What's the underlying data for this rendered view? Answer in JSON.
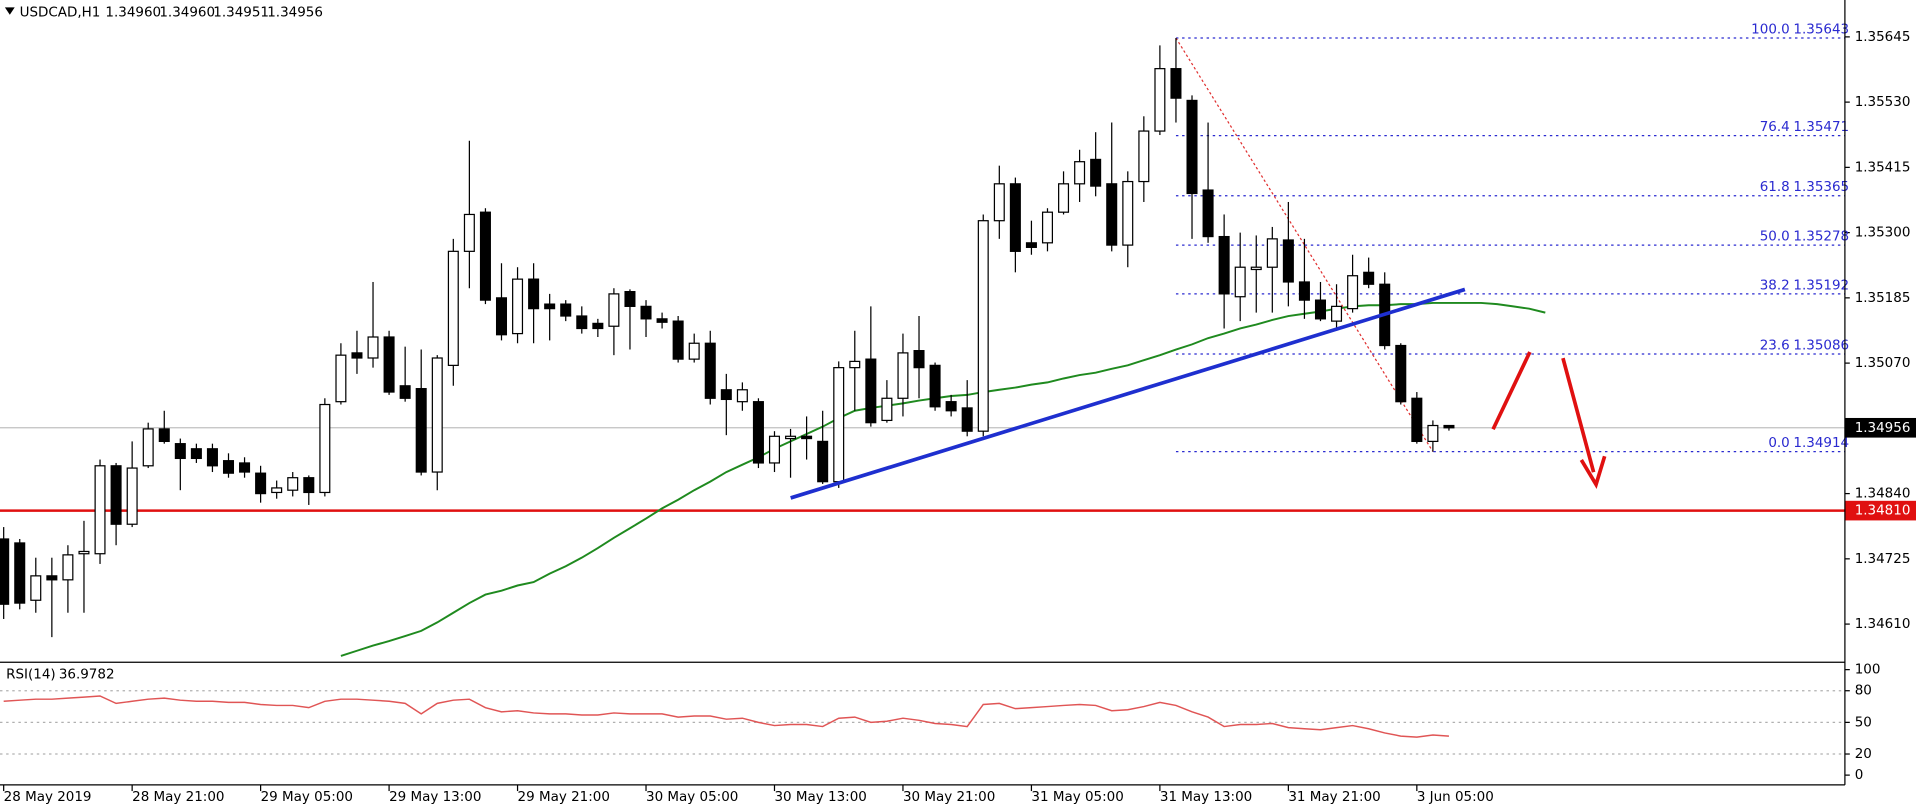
{
  "chart_data": {
    "type": "candlestick",
    "title": "USDCAD,H1",
    "header_values": [
      "1.34960",
      "1.34960",
      "1.34951",
      "1.34956"
    ],
    "categories": [
      "28 May 2019",
      null,
      null,
      null,
      null,
      null,
      null,
      null,
      "28 May 21:00",
      null,
      null,
      null,
      null,
      null,
      null,
      null,
      "29 May 05:00",
      null,
      null,
      null,
      null,
      null,
      null,
      null,
      "29 May 13:00",
      null,
      null,
      null,
      null,
      null,
      null,
      null,
      "29 May 21:00",
      null,
      null,
      null,
      null,
      null,
      null,
      null,
      "30 May 05:00",
      null,
      null,
      null,
      null,
      null,
      null,
      null,
      "30 May 13:00",
      null,
      null,
      null,
      null,
      null,
      null,
      null,
      "30 May 21:00",
      null,
      null,
      null,
      null,
      null,
      null,
      null,
      "31 May 05:00",
      null,
      null,
      null,
      null,
      null,
      null,
      null,
      "31 May 13:00",
      null,
      null,
      null,
      null,
      null,
      null,
      null,
      "31 May 21:00",
      null,
      null,
      null,
      null,
      null,
      null,
      null,
      "3 Jun 05:00",
      null,
      null,
      null,
      null,
      null,
      null,
      null,
      null
    ],
    "open": [
      1.3476,
      1.34753,
      1.34652,
      1.34695,
      1.34688,
      1.34734,
      1.34734,
      1.34889,
      1.34786,
      1.34889,
      1.34954,
      1.34928,
      1.34919,
      1.34919,
      1.34898,
      1.34894,
      1.34876,
      1.34842,
      1.34846,
      1.34868,
      1.34842,
      1.35002,
      1.35088,
      1.35079,
      1.35116,
      1.3503,
      1.35025,
      1.34878,
      1.35066,
      1.35267,
      1.35336,
      1.35185,
      1.35122,
      1.35218,
      1.35174,
      1.35174,
      1.35153,
      1.3514,
      1.35135,
      1.35196,
      1.3517,
      1.35148,
      1.35144,
      1.35077,
      1.35105,
      1.35023,
      1.35002,
      1.35002,
      1.34894,
      1.34937,
      1.34941,
      1.34932,
      1.34861,
      1.35062,
      1.35077,
      1.34969,
      1.35008,
      1.35092,
      1.35066,
      1.35002,
      1.34991,
      1.3495,
      1.35321,
      1.35386,
      1.35282,
      1.35282,
      1.35336,
      1.35386,
      1.35429,
      1.35386,
      1.35278,
      1.3539,
      1.35479,
      1.35589,
      1.35533,
      1.35375,
      1.35293,
      1.35187,
      1.35235,
      1.35239,
      1.35287,
      1.35213,
      1.35181,
      1.35144,
      1.35166,
      1.3523,
      1.35209,
      1.35101,
      1.35008,
      1.34932,
      1.3496,
      null,
      null,
      null,
      null,
      null,
      null
    ],
    "high": [
      1.34781,
      1.3476,
      1.34727,
      1.34727,
      1.34749,
      1.34792,
      1.349,
      1.34894,
      1.34932,
      1.34965,
      1.34986,
      1.34937,
      1.34928,
      1.34928,
      1.34911,
      1.34904,
      1.34889,
      1.34863,
      1.34878,
      1.34872,
      1.35008,
      1.35105,
      1.35127,
      1.35213,
      1.35127,
      1.35099,
      1.35094,
      1.35084,
      1.35289,
      1.35462,
      1.35343,
      1.35246,
      1.35239,
      1.35246,
      1.35192,
      1.35181,
      1.3517,
      1.35148,
      1.35202,
      1.352,
      1.35181,
      1.35159,
      1.35153,
      1.35122,
      1.35127,
      1.35051,
      1.35036,
      1.35008,
      1.3495,
      1.34954,
      1.34976,
      1.34986,
      1.35073,
      1.35127,
      1.3517,
      1.3504,
      1.35122,
      1.35153,
      1.35071,
      1.35014,
      1.3504,
      1.35332,
      1.35418,
      1.35397,
      1.35321,
      1.35343,
      1.35408,
      1.35446,
      1.35477,
      1.35494,
      1.35408,
      1.35505,
      1.3563,
      1.35643,
      1.35542,
      1.35494,
      1.35332,
      1.353,
      1.35295,
      1.3531,
      1.35354,
      1.35289,
      1.35213,
      1.35209,
      1.35261,
      1.35256,
      1.3523,
      1.35105,
      1.35019,
      1.34969,
      1.3496,
      null,
      null,
      null,
      null,
      null,
      null
    ],
    "low": [
      1.34619,
      1.34636,
      1.3463,
      1.34587,
      1.3463,
      1.3463,
      1.34716,
      1.34749,
      1.34781,
      1.34885,
      1.34928,
      1.34846,
      1.34894,
      1.34878,
      1.34868,
      1.34868,
      1.34824,
      1.34831,
      1.34835,
      1.3482,
      1.34835,
      1.34997,
      1.35051,
      1.35062,
      1.35014,
      1.35002,
      1.34872,
      1.34846,
      1.3503,
      1.35202,
      1.35174,
      1.3511,
      1.35105,
      1.35105,
      1.3511,
      1.35144,
      1.35122,
      1.35116,
      1.35084,
      1.35094,
      1.35116,
      1.35131,
      1.35071,
      1.35071,
      1.34997,
      1.34943,
      1.34986,
      1.34885,
      1.34878,
      1.34868,
      1.349,
      1.34857,
      1.3485,
      1.34986,
      1.34958,
      1.34965,
      1.34976,
      1.35008,
      1.34986,
      1.34976,
      1.34941,
      1.34941,
      1.35289,
      1.3523,
      1.35261,
      1.35267,
      1.35332,
      1.35354,
      1.35364,
      1.35267,
      1.35239,
      1.35354,
      1.35472,
      1.35494,
      1.35289,
      1.35282,
      1.35131,
      1.35144,
      1.35159,
      1.35159,
      1.3517,
      1.35148,
      1.35144,
      1.35127,
      1.35159,
      1.35202,
      1.35094,
      1.34997,
      1.34928,
      1.34914,
      1.34951,
      null,
      null,
      null,
      null,
      null,
      null
    ],
    "close": [
      1.34645,
      1.34647,
      1.34695,
      1.34688,
      1.34732,
      1.34738,
      1.34889,
      1.34786,
      1.34885,
      1.34954,
      1.34932,
      1.34902,
      1.34902,
      1.34889,
      1.34876,
      1.34878,
      1.3484,
      1.3485,
      1.34868,
      1.34842,
      1.34997,
      1.35084,
      1.35079,
      1.35116,
      1.35019,
      1.35008,
      1.34878,
      1.35079,
      1.35267,
      1.35332,
      1.35181,
      1.3512,
      1.35218,
      1.35166,
      1.35166,
      1.35153,
      1.35131,
      1.35131,
      1.35192,
      1.3517,
      1.35148,
      1.35142,
      1.35077,
      1.35105,
      1.35008,
      1.35006,
      1.35023,
      1.34894,
      1.34941,
      1.34941,
      1.34937,
      1.34861,
      1.35062,
      1.35073,
      1.34965,
      1.35008,
      1.35088,
      1.35062,
      1.34993,
      1.34986,
      1.3495,
      1.35321,
      1.35386,
      1.35267,
      1.35274,
      1.35336,
      1.35386,
      1.35425,
      1.35382,
      1.35278,
      1.3539,
      1.35479,
      1.35589,
      1.35537,
      1.35369,
      1.35293,
      1.35192,
      1.35239,
      1.35239,
      1.35289,
      1.35213,
      1.35181,
      1.35148,
      1.3517,
      1.35224,
      1.35209,
      1.35101,
      1.35002,
      1.34932,
      1.3496,
      1.34956,
      null,
      null,
      null,
      null,
      null,
      null
    ],
    "bull_color": "#ffffff",
    "bear_color": "#000000",
    "ylim": [
      1.34547,
      1.3571
    ],
    "yticks": [
      {
        "value": 1.35645,
        "label": "1.35645"
      },
      {
        "value": 1.3553,
        "label": "1.35530"
      },
      {
        "value": 1.35415,
        "label": "1.35415"
      },
      {
        "value": 1.353,
        "label": "1.35300"
      },
      {
        "value": 1.35185,
        "label": "1.35185"
      },
      {
        "value": 1.3507,
        "label": "1.35070"
      },
      {
        "value": 1.3484,
        "label": "1.34840"
      },
      {
        "value": 1.34725,
        "label": "1.34725"
      },
      {
        "value": 1.3461,
        "label": "1.34610"
      }
    ],
    "moving_average": {
      "color": "#1f8a1f",
      "values": [
        null,
        null,
        null,
        null,
        null,
        null,
        null,
        null,
        null,
        null,
        null,
        null,
        null,
        null,
        null,
        null,
        null,
        null,
        null,
        null,
        null,
        1.34554,
        1.34563,
        1.34572,
        1.3458,
        1.34589,
        1.34598,
        1.34613,
        1.3463,
        1.34647,
        1.34662,
        1.34669,
        1.34678,
        1.34684,
        1.34699,
        1.34712,
        1.34727,
        1.34744,
        1.34762,
        1.34779,
        1.34796,
        1.34814,
        1.34829,
        1.34846,
        1.34861,
        1.34878,
        1.34891,
        1.34904,
        1.34919,
        1.34932,
        1.34945,
        1.34958,
        1.34973,
        1.34986,
        1.34991,
        1.34995,
        1.34999,
        1.35004,
        1.35008,
        1.35012,
        1.35014,
        1.35019,
        1.35023,
        1.35027,
        1.35032,
        1.35036,
        1.35043,
        1.35049,
        1.35053,
        1.3506,
        1.35066,
        1.35075,
        1.35084,
        1.35094,
        1.35103,
        1.35114,
        1.35122,
        1.35131,
        1.35138,
        1.35146,
        1.35153,
        1.35157,
        1.35161,
        1.35166,
        1.3517,
        1.35172,
        1.35172,
        1.35174,
        1.35174,
        1.35176,
        1.35176,
        1.35176,
        1.35176,
        1.35174,
        1.3517,
        1.35166,
        1.35159
      ]
    },
    "fibonacci": {
      "color": "#2a2ad0",
      "line_color": "#e03030",
      "levels": [
        {
          "level": {
            "value": 100,
            "label": "100.0"
          },
          "price": 1.35643
        },
        {
          "level": 76.4,
          "price": 1.35471
        },
        {
          "level": 61.8,
          "price": 1.35365
        },
        {
          "level": {
            "value": 50,
            "label": "50.0"
          },
          "price": 1.35278
        },
        {
          "level": 38.2,
          "price": 1.35192
        },
        {
          "level": 23.6,
          "price": 1.35086
        },
        {
          "level": {
            "value": 0,
            "label": "0.0"
          },
          "price": 1.34914
        }
      ]
    },
    "support_level": {
      "value": 1.3481,
      "label": "1.34810"
    },
    "support_color": "#e01010",
    "rsi": {
      "title": "RSI(14)",
      "color": "#e05555",
      "ylim": [
        0,
        100
      ],
      "yticks": [
        100,
        80,
        50,
        20,
        0
      ],
      "values": [
        70,
        71,
        72,
        72,
        73,
        74,
        75,
        68,
        70,
        72,
        73,
        71,
        70,
        70,
        69,
        69,
        67,
        66,
        66,
        64,
        70,
        72,
        72,
        71,
        70,
        68,
        58,
        68,
        71,
        72,
        64,
        60,
        61,
        59,
        58,
        58,
        57,
        57,
        59,
        58,
        58,
        58,
        55,
        56,
        56,
        53,
        54,
        50,
        47,
        48,
        48,
        46,
        54,
        55,
        50,
        51,
        54,
        52,
        49,
        48,
        46,
        67,
        68,
        63,
        64,
        65,
        66,
        67,
        66,
        61,
        62,
        65,
        69,
        66,
        60,
        55,
        46,
        48,
        48,
        49,
        45,
        44,
        43,
        45,
        47,
        44,
        40,
        37,
        36,
        38,
        36.9782,
        null,
        null,
        null,
        null,
        null,
        null
      ]
    }
  }
}
